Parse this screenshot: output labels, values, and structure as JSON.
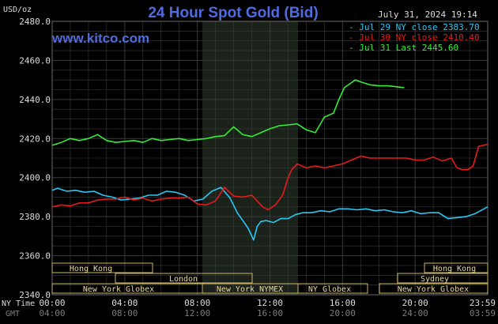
{
  "chart_data": {
    "type": "line",
    "title": "24 Hour Spot Gold (Bid)",
    "site": "www.kitco.com",
    "timestamp": "July 31, 2024 19:14",
    "ylabel": "USD/oz",
    "ylim": [
      2340,
      2480
    ],
    "yticks": [
      "2480.0",
      "2460.0",
      "2440.0",
      "2420.0",
      "2400.0",
      "2380.0",
      "2360.0",
      "2340.0"
    ],
    "xlim": [
      0,
      24
    ],
    "x_ticks_ny": [
      "00:00",
      "04:00",
      "08:00",
      "12:00",
      "16:00",
      "20:00",
      "23:59"
    ],
    "x_ticks_gmt": [
      "04:00",
      "08:00",
      "12:00",
      "16:00",
      "20:00",
      "24:00",
      "03:59"
    ],
    "x_row_labels": {
      "ny": "NY Time",
      "gmt": "GMT"
    },
    "grid": true,
    "legend_position": "top-right",
    "series": [
      {
        "name": "Jul 29 NY close 2383.70",
        "color": "#29c8f5",
        "x": [
          0,
          0.3,
          0.8,
          1.3,
          1.8,
          2.3,
          2.8,
          3.3,
          3.8,
          4.3,
          4.8,
          5.3,
          5.8,
          6.3,
          6.8,
          7.3,
          7.8,
          8.3,
          8.8,
          9.3,
          9.8,
          10.2,
          10.5,
          10.8,
          11.1,
          11.3,
          11.5,
          11.8,
          12.2,
          12.6,
          13.0,
          13.4,
          13.8,
          14.3,
          14.8,
          15.3,
          15.8,
          16.3,
          16.8,
          17.3,
          17.8,
          18.3,
          18.8,
          19.3,
          19.8,
          20.3,
          20.8,
          21.3,
          21.8,
          22.3,
          22.8,
          23.3,
          23.99
        ],
        "y": [
          2393.5,
          2394.5,
          2393,
          2393.5,
          2392.5,
          2393,
          2391,
          2390,
          2388.5,
          2389,
          2389.5,
          2391,
          2391,
          2393,
          2392.5,
          2391,
          2388,
          2389,
          2393,
          2395,
          2389.5,
          2382,
          2378,
          2374,
          2368,
          2375,
          2377.5,
          2378,
          2377,
          2379,
          2379,
          2381,
          2382,
          2382,
          2383,
          2382.5,
          2384,
          2384,
          2383.5,
          2384,
          2383,
          2383.5,
          2382.5,
          2382,
          2383,
          2381.5,
          2382,
          2382,
          2379,
          2379.5,
          2380,
          2381.5,
          2385
        ]
      },
      {
        "name": "Jul 30 NY close 2410.40",
        "color": "#e51b1b",
        "x": [
          0,
          0.5,
          1.0,
          1.5,
          2.0,
          2.5,
          3.0,
          3.5,
          4.0,
          4.5,
          5.0,
          5.5,
          6.0,
          6.5,
          7.0,
          7.5,
          8.0,
          8.5,
          9.0,
          9.5,
          10.0,
          10.5,
          11.0,
          11.3,
          11.6,
          11.9,
          12.3,
          12.7,
          13.0,
          13.2,
          13.5,
          14.0,
          14.5,
          15.0,
          15.5,
          16.0,
          16.5,
          17.0,
          17.5,
          18.0,
          18.5,
          19.0,
          19.5,
          20.0,
          20.5,
          21.0,
          21.5,
          22.0,
          22.3,
          22.6,
          22.9,
          23.2,
          23.5,
          23.99
        ],
        "y": [
          2385,
          2386,
          2385.5,
          2387,
          2387,
          2388.5,
          2389,
          2389,
          2390,
          2388.5,
          2389.5,
          2388,
          2389,
          2389.5,
          2389.5,
          2390,
          2386.5,
          2386,
          2388,
          2395,
          2390.5,
          2390,
          2391,
          2388,
          2385,
          2383.5,
          2386,
          2391,
          2400,
          2404,
          2407,
          2405,
          2406,
          2405,
          2406,
          2407,
          2409,
          2411,
          2410,
          2410,
          2410,
          2410,
          2410,
          2409,
          2409,
          2410.5,
          2408.5,
          2410,
          2405,
          2404,
          2404,
          2406,
          2416,
          2417
        ]
      },
      {
        "name": "Jul 31 Last 2445.60",
        "color": "#33ee33",
        "x": [
          0,
          0.5,
          1.0,
          1.5,
          2.0,
          2.5,
          3.0,
          3.5,
          4.0,
          4.5,
          5.0,
          5.5,
          6.0,
          6.5,
          7.0,
          7.5,
          8.0,
          8.5,
          9.0,
          9.5,
          10.0,
          10.5,
          11.0,
          11.5,
          12.0,
          12.5,
          13.0,
          13.5,
          14.0,
          14.5,
          15.0,
          15.5,
          15.8,
          16.1,
          16.4,
          16.7,
          17.0,
          17.5,
          18.0,
          18.5,
          19.0,
          19.4
        ],
        "y": [
          2416.5,
          2418,
          2420,
          2419,
          2420,
          2422,
          2419,
          2418,
          2418.5,
          2419,
          2418,
          2420,
          2419,
          2419.5,
          2420,
          2419,
          2419.5,
          2420,
          2421,
          2421.5,
          2426,
          2422,
          2421,
          2423,
          2425,
          2426.5,
          2427,
          2427.5,
          2424.5,
          2423,
          2431,
          2433,
          2440,
          2446,
          2448,
          2450,
          2449,
          2447.5,
          2447,
          2447,
          2446.5,
          2446
        ]
      }
    ]
  },
  "markets": {
    "hong_kong_a": "Hong Kong",
    "london": "London",
    "new_york_globex_a": "New York Globex",
    "new_york_nymex": "New York NYMEX",
    "ny_globex": "NY Globex",
    "hong_kong_b": "Hong Kong",
    "sydney": "Sydney",
    "new_york_globex_b": "New York Globex"
  },
  "colors": {
    "background": "#000000",
    "plot_background": "#000000",
    "session_shade": "#1b221a",
    "grid": "#3a3a3a",
    "title": "#4f6be0",
    "market_box_border": "#c8b46a"
  }
}
